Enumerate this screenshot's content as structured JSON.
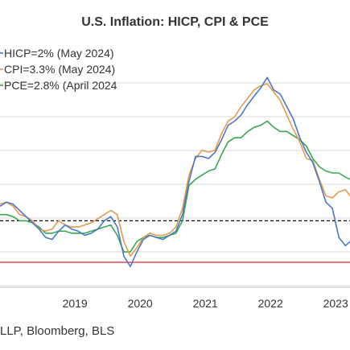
{
  "chart_data": {
    "type": "line",
    "title": "U.S. Inflation: HICP, CPI & PCE",
    "source": "LLP, Bloomberg, BLS",
    "x_ticks": [
      "2019",
      "2020",
      "2021",
      "2022",
      "2023"
    ],
    "xlim": [
      2018.35,
      2023.72
    ],
    "ylim": [
      -1.2,
      10.5
    ],
    "grid": true,
    "legend_placement": "top-left",
    "reference_lines": [
      {
        "value": 2.0,
        "color": "#000000",
        "style": "dashed"
      },
      {
        "value": 0.0,
        "color": "#dd2a2a",
        "style": "solid"
      }
    ],
    "series": [
      {
        "name": "HICP=2% (May 2024)",
        "color": "#4a78c8",
        "x": [
          2018.35,
          2018.45,
          2018.55,
          2018.65,
          2018.75,
          2018.85,
          2018.95,
          2019.05,
          2019.15,
          2019.25,
          2019.35,
          2019.45,
          2019.55,
          2019.65,
          2019.75,
          2019.85,
          2019.95,
          2020.05,
          2020.15,
          2020.25,
          2020.35,
          2020.45,
          2020.55,
          2020.65,
          2020.75,
          2020.85,
          2020.95,
          2021.05,
          2021.15,
          2021.25,
          2021.35,
          2021.45,
          2021.55,
          2021.65,
          2021.75,
          2021.85,
          2021.95,
          2022.05,
          2022.15,
          2022.25,
          2022.35,
          2022.45,
          2022.55,
          2022.65,
          2022.75,
          2022.85,
          2022.95,
          2023.05,
          2023.15,
          2023.25,
          2023.35,
          2023.45,
          2023.55,
          2023.65,
          2023.72
        ],
        "values": [
          2.7,
          2.9,
          2.8,
          2.5,
          2.2,
          1.9,
          1.6,
          1.2,
          1.1,
          1.5,
          1.8,
          1.6,
          1.5,
          1.3,
          1.4,
          1.6,
          2.0,
          2.2,
          1.7,
          0.3,
          -0.2,
          0.5,
          1.1,
          1.3,
          1.2,
          1.1,
          1.3,
          1.5,
          2.3,
          3.9,
          5.1,
          5.1,
          5.0,
          5.3,
          5.9,
          6.6,
          6.8,
          7.1,
          7.6,
          8.0,
          8.4,
          8.9,
          8.3,
          8.1,
          7.5,
          6.9,
          6.0,
          5.3,
          4.8,
          3.9,
          2.9,
          2.6,
          1.2,
          0.8,
          1.0
        ]
      },
      {
        "name": "CPI=3.3% (May 2024)",
        "color": "#e69a4c",
        "x": [
          2018.35,
          2018.45,
          2018.55,
          2018.65,
          2018.75,
          2018.85,
          2018.95,
          2019.05,
          2019.15,
          2019.25,
          2019.35,
          2019.45,
          2019.55,
          2019.65,
          2019.75,
          2019.85,
          2019.95,
          2020.05,
          2020.15,
          2020.25,
          2020.35,
          2020.45,
          2020.55,
          2020.65,
          2020.75,
          2020.85,
          2020.95,
          2021.05,
          2021.15,
          2021.25,
          2021.35,
          2021.45,
          2021.55,
          2021.65,
          2021.75,
          2021.85,
          2021.95,
          2022.05,
          2022.15,
          2022.25,
          2022.35,
          2022.45,
          2022.55,
          2022.65,
          2022.75,
          2022.85,
          2022.95,
          2023.05,
          2023.15,
          2023.25,
          2023.35,
          2023.45,
          2023.55,
          2023.65,
          2023.72
        ],
        "values": [
          2.8,
          2.9,
          2.7,
          2.3,
          2.2,
          2.0,
          1.6,
          1.5,
          1.6,
          2.0,
          1.8,
          1.7,
          1.7,
          1.8,
          1.9,
          2.1,
          2.3,
          2.5,
          2.3,
          1.0,
          0.3,
          0.7,
          1.2,
          1.4,
          1.3,
          1.3,
          1.4,
          1.7,
          2.6,
          4.2,
          5.0,
          5.4,
          5.3,
          5.4,
          6.2,
          6.8,
          7.0,
          7.5,
          7.9,
          8.3,
          8.5,
          8.6,
          8.2,
          7.8,
          7.1,
          6.4,
          5.8,
          5.0,
          4.9,
          4.0,
          3.2,
          3.1,
          3.4,
          3.5,
          3.2
        ]
      },
      {
        "name": "PCE=2.8% (April 2024",
        "color": "#3aa852",
        "x": [
          2018.35,
          2018.45,
          2018.55,
          2018.65,
          2018.75,
          2018.85,
          2018.95,
          2019.05,
          2019.15,
          2019.25,
          2019.35,
          2019.45,
          2019.55,
          2019.65,
          2019.75,
          2019.85,
          2019.95,
          2020.05,
          2020.15,
          2020.25,
          2020.35,
          2020.45,
          2020.55,
          2020.65,
          2020.75,
          2020.85,
          2020.95,
          2021.05,
          2021.15,
          2021.25,
          2021.35,
          2021.45,
          2021.55,
          2021.65,
          2021.75,
          2021.85,
          2021.95,
          2022.05,
          2022.15,
          2022.25,
          2022.35,
          2022.45,
          2022.55,
          2022.65,
          2022.75,
          2022.85,
          2022.95,
          2023.05,
          2023.15,
          2023.25,
          2023.35,
          2023.45,
          2023.55,
          2023.65,
          2023.72
        ],
        "values": [
          2.3,
          2.3,
          2.2,
          2.0,
          2.0,
          1.9,
          1.7,
          1.4,
          1.4,
          1.5,
          1.5,
          1.4,
          1.4,
          1.4,
          1.5,
          1.6,
          1.7,
          1.8,
          1.3,
          0.5,
          0.5,
          1.0,
          1.2,
          1.3,
          1.2,
          1.2,
          1.3,
          1.4,
          2.0,
          3.7,
          4.0,
          4.2,
          4.4,
          4.5,
          5.2,
          5.8,
          6.0,
          6.0,
          6.3,
          6.5,
          6.6,
          6.8,
          6.5,
          6.3,
          6.3,
          6.1,
          5.9,
          5.6,
          5.0,
          4.6,
          4.4,
          4.3,
          4.3,
          4.1,
          4.0
        ]
      }
    ]
  }
}
